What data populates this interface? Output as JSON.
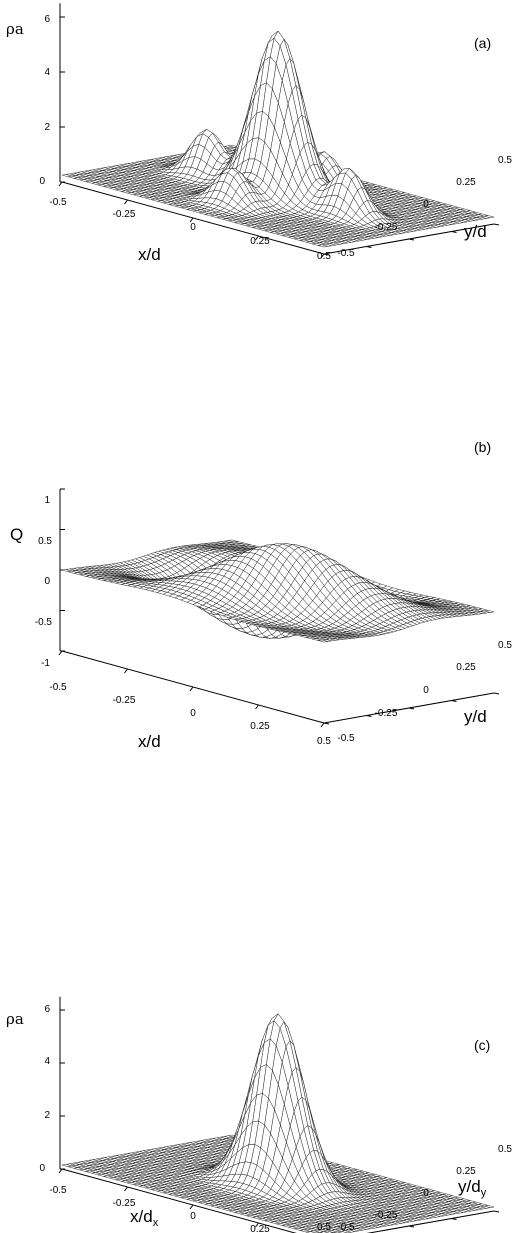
{
  "chart_data": [
    {
      "type": "surface",
      "panel_label": "(a)",
      "zlabel": "ρa",
      "xlabel": "x/d",
      "ylabel": "y/d",
      "x_ticks": [
        "-0.5",
        "-0.25",
        "0",
        "0.25",
        "0.5"
      ],
      "y_ticks": [
        "-0.5",
        "-0.25",
        "0",
        "0.25",
        "0.5"
      ],
      "z_ticks": [
        "0",
        "2",
        "4",
        "6"
      ],
      "xlim": [
        -0.5,
        0.5
      ],
      "ylim": [
        -0.5,
        0.5
      ],
      "zlim": [
        0,
        6
      ],
      "peak": {
        "x": 0,
        "y": 0,
        "z": 6.3
      },
      "features": [
        {
          "x": -0.25,
          "y": 0,
          "z": 1.8
        },
        {
          "x": 0.25,
          "y": 0,
          "z": 1.8
        },
        {
          "x": 0,
          "y": 0.25,
          "z": 1.5
        },
        {
          "x": 0,
          "y": -0.25,
          "z": 1.5
        }
      ]
    },
    {
      "type": "surface",
      "panel_label": "(b)",
      "zlabel": "Q",
      "xlabel": "x/d",
      "ylabel": "y/d",
      "x_ticks": [
        "-0.5",
        "-0.25",
        "0",
        "0.25",
        "0.5"
      ],
      "y_ticks": [
        "-0.5",
        "-0.25",
        "0",
        "0.25",
        "0.5"
      ],
      "z_ticks": [
        "-1",
        "-0.5",
        "0",
        "0.5",
        "1"
      ],
      "xlim": [
        -0.5,
        0.5
      ],
      "ylim": [
        -0.5,
        0.5
      ],
      "zlim": [
        -1,
        1
      ],
      "peak": {
        "x": -0.1,
        "y": 0.2,
        "z": 1.0
      },
      "trough": {
        "x": 0.1,
        "y": -0.15,
        "z": -1.0
      }
    },
    {
      "type": "surface",
      "panel_label": "(c)",
      "zlabel": "ρa",
      "xlabel": "x/d",
      "xlabel_sub": "x",
      "ylabel": "y/d",
      "ylabel_sub": "y",
      "x_ticks": [
        "-0.5",
        "-0.25",
        "0",
        "0.25",
        "0.5"
      ],
      "y_ticks": [
        "-0.5",
        "-0.25",
        "0",
        "0.25",
        "0.5"
      ],
      "z_ticks": [
        "0",
        "2",
        "4",
        "6"
      ],
      "xlim": [
        -0.5,
        0.5
      ],
      "ylim": [
        -0.5,
        0.5
      ],
      "zlim": [
        0,
        6
      ],
      "peak": {
        "x": 0,
        "y": 0,
        "z": 6.6
      }
    }
  ]
}
